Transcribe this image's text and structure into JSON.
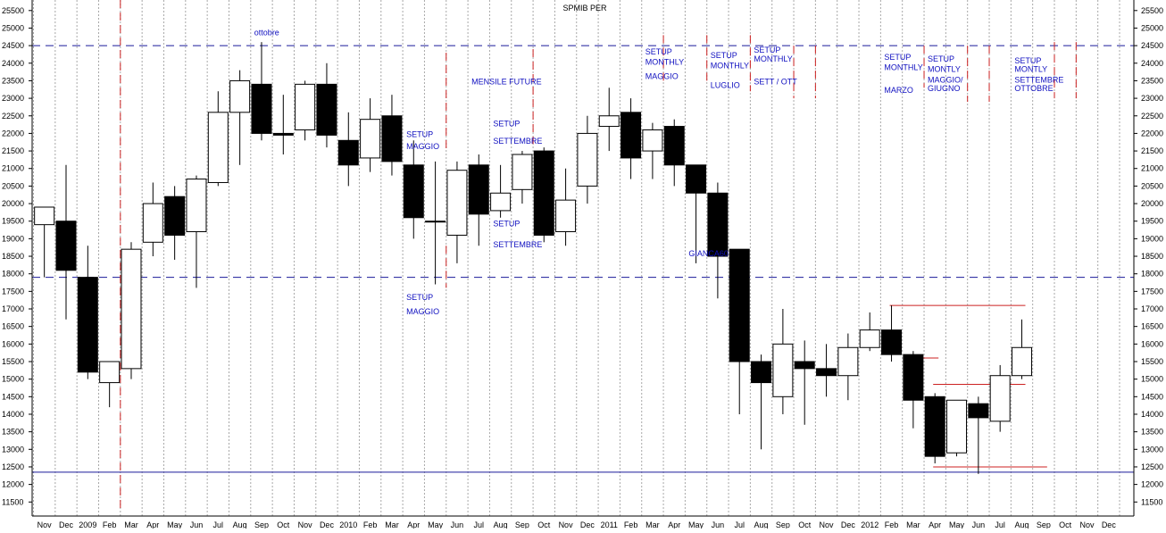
{
  "chart_data": {
    "type": "candlestick",
    "title": "SPMIB PER",
    "ylim": [
      11100,
      25800
    ],
    "y_ticks": [
      11500,
      12000,
      12500,
      13000,
      13500,
      14000,
      14500,
      15000,
      15500,
      16000,
      16500,
      17000,
      17500,
      18000,
      18500,
      19000,
      19500,
      20000,
      20500,
      21000,
      21500,
      22000,
      22500,
      23000,
      23500,
      24000,
      24500,
      25000,
      25500
    ],
    "x_tick_labels": [
      "Nov",
      "Dec",
      "2009",
      "Feb",
      "Mar",
      "Apr",
      "May",
      "Jun",
      "Jul",
      "Aug",
      "Sep",
      "Oct",
      "Nov",
      "Dec",
      "2010",
      "Feb",
      "Mar",
      "Apr",
      "May",
      "Jun",
      "Jul",
      "Aug",
      "Sep",
      "Oct",
      "Nov",
      "Dec",
      "2011",
      "Feb",
      "Mar",
      "Apr",
      "May",
      "Jun",
      "Jul",
      "Aug",
      "Sep",
      "Oct",
      "Nov",
      "Dec",
      "2012",
      "Feb",
      "Mar",
      "Apr",
      "May",
      "Jun",
      "Jul",
      "Aug",
      "Sep",
      "Oct",
      "Nov",
      "Dec"
    ],
    "grid": true,
    "candles": [
      {
        "period": "Nov 2008",
        "open": 19400,
        "high": 19900,
        "low": 17900,
        "close": 19900
      },
      {
        "period": "Dec 2008",
        "open": 19500,
        "high": 21100,
        "low": 16700,
        "close": 18100
      },
      {
        "period": "Jan 2009",
        "open": 17900,
        "high": 18800,
        "low": 15000,
        "close": 15200
      },
      {
        "period": "Feb 2009",
        "open": 14900,
        "high": 15500,
        "low": 14200,
        "close": 15500
      },
      {
        "period": "Mar 2009",
        "open": 15300,
        "high": 18900,
        "low": 15000,
        "close": 18700
      },
      {
        "period": "Apr 2009",
        "open": 18900,
        "high": 20600,
        "low": 18500,
        "close": 20000
      },
      {
        "period": "May 2009",
        "open": 20200,
        "high": 20500,
        "low": 18400,
        "close": 19100
      },
      {
        "period": "Jun 2009",
        "open": 19200,
        "high": 20800,
        "low": 17600,
        "close": 20700
      },
      {
        "period": "Jul 2009",
        "open": 20600,
        "high": 23200,
        "low": 20500,
        "close": 22600
      },
      {
        "period": "Aug 2009",
        "open": 22600,
        "high": 23800,
        "low": 21100,
        "close": 23500
      },
      {
        "period": "Sep 2009",
        "open": 23400,
        "high": 24600,
        "low": 21800,
        "close": 22000
      },
      {
        "period": "Oct 2009",
        "open": 22000,
        "high": 23100,
        "low": 21400,
        "close": 21950
      },
      {
        "period": "Nov 2009",
        "open": 22100,
        "high": 23500,
        "low": 21800,
        "close": 23400
      },
      {
        "period": "Dec 2009",
        "open": 23400,
        "high": 24000,
        "low": 21600,
        "close": 21950
      },
      {
        "period": "Jan 2010",
        "open": 21800,
        "high": 22600,
        "low": 20500,
        "close": 21100
      },
      {
        "period": "Feb 2010",
        "open": 21300,
        "high": 23000,
        "low": 20900,
        "close": 22400
      },
      {
        "period": "Mar 2010",
        "open": 22500,
        "high": 23100,
        "low": 20800,
        "close": 21200
      },
      {
        "period": "Apr 2010",
        "open": 21100,
        "high": 21800,
        "low": 19000,
        "close": 19600
      },
      {
        "period": "May 2010",
        "open": 19500,
        "high": 21200,
        "low": 17700,
        "close": 19500
      },
      {
        "period": "Jun 2010",
        "open": 19100,
        "high": 21200,
        "low": 18300,
        "close": 20950
      },
      {
        "period": "Jul 2010",
        "open": 21100,
        "high": 21400,
        "low": 18800,
        "close": 19700
      },
      {
        "period": "Aug 2010",
        "open": 19800,
        "high": 21100,
        "low": 19600,
        "close": 20300
      },
      {
        "period": "Sep 2010",
        "open": 20400,
        "high": 21500,
        "low": 20000,
        "close": 21400
      },
      {
        "period": "Oct 2010",
        "open": 21500,
        "high": 21600,
        "low": 18900,
        "close": 19100
      },
      {
        "period": "Nov 2010",
        "open": 19200,
        "high": 21000,
        "low": 18800,
        "close": 20100
      },
      {
        "period": "Dec 2010",
        "open": 20500,
        "high": 22500,
        "low": 20000,
        "close": 22000
      },
      {
        "period": "Jan 2011",
        "open": 22200,
        "high": 23300,
        "low": 21500,
        "close": 22500
      },
      {
        "period": "Feb 2011",
        "open": 22600,
        "high": 23000,
        "low": 20700,
        "close": 21300
      },
      {
        "period": "Mar 2011",
        "open": 21500,
        "high": 22300,
        "low": 20700,
        "close": 22100
      },
      {
        "period": "Apr 2011",
        "open": 22200,
        "high": 22400,
        "low": 20500,
        "close": 21100
      },
      {
        "period": "May 2011",
        "open": 21100,
        "high": 21100,
        "low": 18300,
        "close": 20300
      },
      {
        "period": "Jun 2011",
        "open": 20300,
        "high": 20600,
        "low": 17300,
        "close": 18500
      },
      {
        "period": "Jul 2011",
        "open": 18700,
        "high": 18700,
        "low": 14000,
        "close": 15500
      },
      {
        "period": "Aug 2011",
        "open": 15500,
        "high": 15700,
        "low": 13000,
        "close": 14900
      },
      {
        "period": "Sep 2011",
        "open": 14500,
        "high": 17000,
        "low": 14000,
        "close": 16000
      },
      {
        "period": "Oct 2011",
        "open": 15500,
        "high": 16100,
        "low": 13700,
        "close": 15300
      },
      {
        "period": "Nov 2011",
        "open": 15300,
        "high": 16000,
        "low": 14500,
        "close": 15100
      },
      {
        "period": "Dec 2011",
        "open": 15100,
        "high": 16300,
        "low": 14400,
        "close": 15900
      },
      {
        "period": "Jan 2012",
        "open": 15900,
        "high": 16900,
        "low": 15800,
        "close": 16400
      },
      {
        "period": "Feb 2012",
        "open": 16400,
        "high": 17100,
        "low": 15500,
        "close": 15700
      },
      {
        "period": "Mar 2012",
        "open": 15700,
        "high": 15800,
        "low": 13600,
        "close": 14400
      },
      {
        "period": "Apr 2012",
        "open": 14500,
        "high": 14600,
        "low": 12600,
        "close": 12800
      },
      {
        "period": "May 2012",
        "open": 12900,
        "high": 14400,
        "low": 12800,
        "close": 14400
      },
      {
        "period": "Jun 2012",
        "open": 14300,
        "high": 14500,
        "low": 12300,
        "close": 13900
      },
      {
        "period": "Jul 2012",
        "open": 13800,
        "high": 15400,
        "low": 13500,
        "close": 15100
      },
      {
        "period": "Aug 2012",
        "open": 15100,
        "high": 16700,
        "low": 15000,
        "close": 15900
      }
    ],
    "horizontal_levels": [
      {
        "style": "dashed",
        "color": "#1a1a9a",
        "value": 24500
      },
      {
        "style": "dashed",
        "color": "#1a1a9a",
        "value": 17900
      },
      {
        "style": "solid",
        "color": "#1a1a9a",
        "value": 12350
      },
      {
        "style": "solid",
        "color": "#cc2222",
        "value": 11100
      }
    ],
    "level_segments": [
      {
        "color": "#cc2222",
        "value": 17100,
        "from": "Feb 2012",
        "to": "Aug 2012"
      },
      {
        "color": "#cc2222",
        "value": 15600,
        "from": "Mar 2012",
        "to": "Apr 2012"
      },
      {
        "color": "#cc2222",
        "value": 14850,
        "from": "Apr 2012",
        "to": "Aug 2012"
      },
      {
        "color": "#cc2222",
        "value": 12500,
        "from": "Apr 2012",
        "to": "Sep 2012"
      }
    ],
    "vertical_markers": [
      {
        "period": "Feb 2009",
        "from": 11300,
        "to": 25800
      },
      {
        "period": "May 2010",
        "from": 21500,
        "to": 24300
      },
      {
        "period": "May 2010",
        "from": 17600,
        "to": 18800
      },
      {
        "period": "Sep 2010",
        "from": 21700,
        "to": 24400
      },
      {
        "period": "Mar 2011",
        "from": 23400,
        "to": 24800
      },
      {
        "period": "May 2011",
        "from": 23400,
        "to": 24800
      },
      {
        "period": "Jul 2011",
        "from": 23200,
        "to": 24800
      },
      {
        "period": "Sep 2011",
        "from": 23000,
        "to": 24500
      },
      {
        "period": "Oct 2011",
        "from": 23000,
        "to": 24500
      },
      {
        "period": "Mar 2012",
        "from": 23300,
        "to": 24500
      },
      {
        "period": "May 2012",
        "from": 22900,
        "to": 24500
      },
      {
        "period": "Jun 2012",
        "from": 22900,
        "to": 24500
      },
      {
        "period": "Sep 2012",
        "from": 23000,
        "to": 24600
      },
      {
        "period": "Oct 2012",
        "from": 23000,
        "to": 24600
      }
    ],
    "annotations": [
      {
        "text": "ottobre",
        "period": "Sep 2009",
        "value": 24800
      },
      {
        "text": "SETUP",
        "period": "Apr 2010",
        "value": 21900
      },
      {
        "text": "MAGGIO",
        "period": "Apr 2010",
        "value": 21550
      },
      {
        "text": "SETUP",
        "period": "Apr 2010",
        "value": 17250
      },
      {
        "text": "MAGGIO",
        "period": "Apr 2010",
        "value": 16850
      },
      {
        "text": "MENSILE FUTURE",
        "period": "Jul 2010",
        "value": 23400
      },
      {
        "text": "SETUP",
        "period": "Aug 2010",
        "value": 22200
      },
      {
        "text": "SETTEMBRE",
        "period": "Aug 2010",
        "value": 21700
      },
      {
        "text": "SETUP",
        "period": "Aug 2010",
        "value": 19350
      },
      {
        "text": "SETTEMBRE",
        "period": "Aug 2010",
        "value": 18750
      },
      {
        "text": "SETUP",
        "period": "Mar 2011",
        "value": 24250
      },
      {
        "text": "MONTHLY",
        "period": "Mar 2011",
        "value": 23950
      },
      {
        "text": "MAGGIO",
        "period": "Mar 2011",
        "value": 23550
      },
      {
        "text": "SETUP",
        "period": "Jun 2011",
        "value": 24150
      },
      {
        "text": "MONTHLY",
        "period": "Jun 2011",
        "value": 23850
      },
      {
        "text": "LUGLIO",
        "period": "Jun 2011",
        "value": 23300
      },
      {
        "text": "SETUP",
        "period": "Aug 2011",
        "value": 24300
      },
      {
        "text": "MONTHLY",
        "period": "Aug 2011",
        "value": 24050
      },
      {
        "text": "SETT / OTT",
        "period": "Aug 2011",
        "value": 23400
      },
      {
        "text": "GIANCA60",
        "period": "May 2011",
        "value": 18500
      },
      {
        "text": "SETUP",
        "period": "Feb 2012",
        "value": 24100
      },
      {
        "text": "MONTHLY",
        "period": "Feb 2012",
        "value": 23800
      },
      {
        "text": "MARZO",
        "period": "Feb 2012",
        "value": 23150
      },
      {
        "text": "SETUP",
        "period": "Apr 2012",
        "value": 24050
      },
      {
        "text": "MONTLY",
        "period": "Apr 2012",
        "value": 23750
      },
      {
        "text": "MAGGIO/",
        "period": "Apr 2012",
        "value": 23450
      },
      {
        "text": "GIUGNO",
        "period": "Apr 2012",
        "value": 23200
      },
      {
        "text": "SETUP",
        "period": "Aug 2012",
        "value": 24000
      },
      {
        "text": "MONTLY",
        "period": "Aug 2012",
        "value": 23750
      },
      {
        "text": "SETTEMBRE",
        "period": "Aug 2012",
        "value": 23450
      },
      {
        "text": "OTTOBRE",
        "period": "Aug 2012",
        "value": 23200
      }
    ]
  }
}
